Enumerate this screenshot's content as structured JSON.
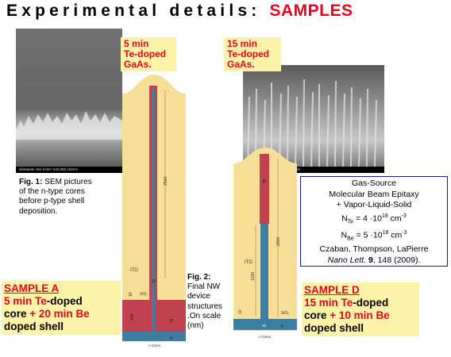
{
  "title": {
    "main": "Experimental details: ",
    "accent": "SAMPLES"
  },
  "sem_left": {
    "scalebar": "McMaster    SEI    5.0kV    X40,000    100nm"
  },
  "sem_right": {
    "scalebar": "4.5kV    X40,000    100nm    WD 6.0mm"
  },
  "tag_a": {
    "line1": "5 min",
    "line2": "Te-doped",
    "line3": "GaAs."
  },
  "tag_d": {
    "line1": "15 min",
    "line2": "Te-doped",
    "line3": "GaAs."
  },
  "fig1": {
    "label": "Fig. 1:",
    "text1": " SEM pictures",
    "text2": "of the n-type cores",
    "text3": "before p-type shell",
    "text4": "deposition."
  },
  "fig2": {
    "label1": "Fig. 2:",
    "text1": "Final NW",
    "text2": "device",
    "text3": "structures",
    "text4": ".On scale",
    "text5": "(nm)"
  },
  "sample_a": {
    "heading": "SAMPLE A",
    "l1a": "5 min ",
    "l1b": "Te",
    "l1c": "-doped",
    "l2a": "core ",
    "l2b": "+ 20 min ",
    "l2c": "Be",
    "l3": "doped shell"
  },
  "sample_d": {
    "heading": "SAMPLE D",
    "l1a": "15 min ",
    "l1b": "Te",
    "l1c": "-doped",
    "l2a": "core ",
    "l2b": "+ 10 min ",
    "l2c": "Be",
    "l3": "doped shell"
  },
  "info": {
    "l1": "Gas-Source",
    "l2": "Molecular Beam Epitaxy",
    "l3": "+ Vapor-Liquid-Solid",
    "nte_a": "N",
    "nte_sub": "Te",
    "nte_b": " = 4 ·10",
    "nte_exp": "18",
    "nte_c": " cm",
    "nte_exp2": "-3",
    "nbe_a": "N",
    "nbe_sub": "Be",
    "nbe_b": " = 5 ·10",
    "nbe_exp": "18",
    "nbe_c": " cm",
    "nbe_exp2": "-3",
    "authors": "Czaban, Thompson, LaPierre",
    "journal": "Nano Lett.",
    "volume": " 9",
    "pages": ", 148 (2009)."
  },
  "device_a": {
    "dim_height": "2500",
    "dim_shell": "400",
    "dim_oxide": "10",
    "ito": "ITO",
    "sio2": "SiO₂",
    "p": "p",
    "n": "n",
    "substrate": "n-GaAs"
  },
  "device_d": {
    "dim_height": "2000",
    "dim_core": "1200",
    "dim_oxide": "10",
    "dim_width": "50",
    "ito": "ITO",
    "sio2": "SiO₂",
    "p": "p",
    "n": "n",
    "substrate": "n-GaAs"
  },
  "colors": {
    "accent": "#e8001c",
    "tag_bg": "#fdf3a8",
    "ito": "#f6df96",
    "p_region": "#c0424f",
    "n_region": "#3e7fa0",
    "info_border": "#1a1aa0"
  }
}
